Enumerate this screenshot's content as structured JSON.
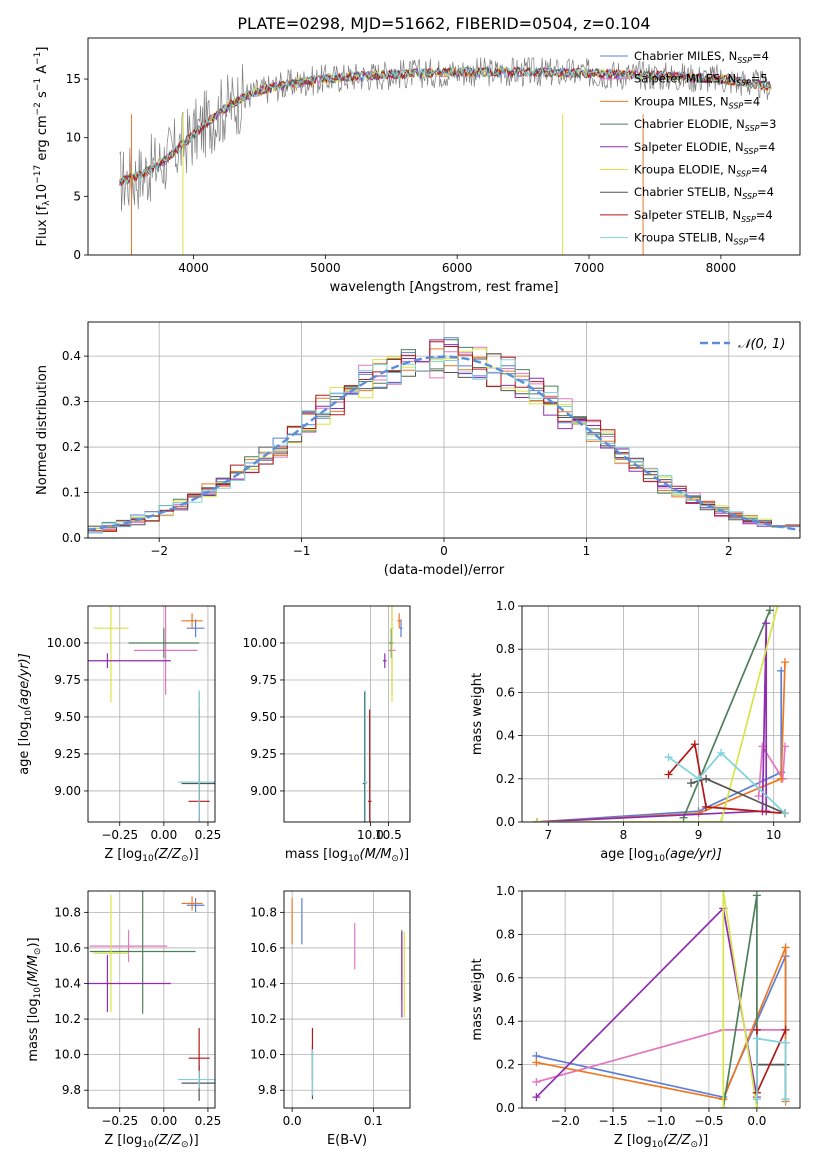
{
  "title": "PLATE=0298, MJD=51662, FIBERID=0504, z=0.104",
  "colors": {
    "Chabrier MILES": "#5b7fd6",
    "Salpeter MILES": "#e377c2",
    "Kroupa MILES": "#ee7722",
    "Chabrier ELODIE": "#4f7f5a",
    "Salpeter ELODIE": "#8e2db2",
    "Kroupa ELODIE": "#d6e548",
    "Chabrier STELIB": "#555555",
    "Salpeter STELIB": "#b21a1a",
    "Kroupa STELIB": "#7fd3dc",
    "normal": "#5b8ed8"
  },
  "chart_data": [
    {
      "id": "spectrum",
      "type": "line",
      "xlabel": "wavelength [Angstrom, rest frame]",
      "ylabel": "Flux [f",
      "ylabel_sub": "λ",
      "ylabel_rest": "10",
      "ylabel_exp": "−17",
      "ylabel_units": "erg cm",
      "ylabel_units_exp1": "−2",
      "ylabel_units_mid": "s",
      "ylabel_units_exp2": "−1",
      "ylabel_units_end": "A",
      "ylabel_units_exp3": "−1",
      "ylabel_close": "]",
      "xlim": [
        3200,
        8600
      ],
      "ylim": [
        0,
        18.5
      ],
      "xticks": [
        "4000",
        "5000",
        "6000",
        "7000",
        "8000"
      ],
      "yticks": [
        "0",
        "5",
        "10",
        "15"
      ],
      "shape_x": [
        3450,
        3600,
        3800,
        4000,
        4200,
        4400,
        4600,
        4800,
        5000,
        5200,
        5500,
        6000,
        6500,
        7000,
        7500,
        8000,
        8350
      ],
      "shape_y": [
        6.3,
        6.8,
        8.2,
        10.3,
        12.2,
        13.6,
        14.3,
        14.7,
        15.0,
        15.2,
        15.4,
        15.6,
        15.6,
        15.5,
        15.3,
        15.0,
        14.4
      ],
      "legend": [
        {
          "name": "Chabrier MILES",
          "pre": "Chabrier MILES, N",
          "sub": "SSP",
          "post": "=4"
        },
        {
          "name": "Salpeter MILES",
          "pre": "Salpeter MILES, N",
          "sub": "SSP",
          "post": "=5"
        },
        {
          "name": "Kroupa MILES",
          "pre": "Kroupa MILES, N",
          "sub": "SSP",
          "post": "=4"
        },
        {
          "name": "Chabrier ELODIE",
          "pre": "Chabrier ELODIE, N",
          "sub": "SSP",
          "post": "=3"
        },
        {
          "name": "Salpeter ELODIE",
          "pre": "Salpeter ELODIE, N",
          "sub": "SSP",
          "post": "=4"
        },
        {
          "name": "Kroupa ELODIE",
          "pre": "Kroupa ELODIE, N",
          "sub": "SSP",
          "post": "=4"
        },
        {
          "name": "Chabrier STELIB",
          "pre": "Chabrier STELIB, N",
          "sub": "SSP",
          "post": "=4"
        },
        {
          "name": "Salpeter STELIB",
          "pre": "Salpeter STELIB, N",
          "sub": "SSP",
          "post": "=4"
        },
        {
          "name": "Kroupa STELIB",
          "pre": "Kroupa STELIB, N",
          "sub": "SSP",
          "post": "=4"
        }
      ],
      "legend_position": "lower-right"
    },
    {
      "id": "residuals",
      "type": "line",
      "xlabel": "(data-model)/error",
      "ylabel": "Normed distribution",
      "xlim": [
        -2.5,
        2.5
      ],
      "ylim": [
        0,
        0.475
      ],
      "xticks": [
        "−2",
        "−1",
        "0",
        "1",
        "2"
      ],
      "yticks": [
        "0.0",
        "0.1",
        "0.2",
        "0.3",
        "0.4"
      ],
      "grid": true,
      "legend": [
        "𝒩(0, 1)"
      ],
      "legend_position": "top-right"
    },
    {
      "id": "age_vs_Z",
      "type": "scatter",
      "xlabel": "Z [log",
      "xlabel_sub": "10",
      "xlabel_rest": "(Z/Z",
      "xlabel_sub2": "⊙",
      "xlabel_close": ")]",
      "ylabel": "age  [log",
      "ylabel_sub": "10",
      "ylabel_rest": "(age/yr)]",
      "xlim": [
        -0.43,
        0.29
      ],
      "ylim": [
        8.79,
        10.25
      ],
      "xticks": [
        "−0.25",
        "0.00",
        "0.25"
      ],
      "yticks": [
        "9.00",
        "9.25",
        "9.50",
        "9.75",
        "10.00"
      ],
      "grid": true,
      "points": [
        {
          "model": "Chabrier MILES",
          "x": 0.18,
          "y": 10.1,
          "xerr": 0.05,
          "yerr": 0.06
        },
        {
          "model": "Kroupa MILES",
          "x": 0.16,
          "y": 10.15,
          "xerr": 0.06,
          "yerr": 0.05
        },
        {
          "model": "Salpeter MILES",
          "x": 0.01,
          "y": 9.95,
          "xerr": 0.18,
          "yerr": 0.3
        },
        {
          "model": "Chabrier ELODIE",
          "x": 0.0,
          "y": 10.0,
          "xerr": 0.2,
          "yerr": 0.1
        },
        {
          "model": "Kroupa ELODIE",
          "x": -0.3,
          "y": 10.1,
          "xerr": 0.1,
          "yerr": 0.5
        },
        {
          "model": "Salpeter ELODIE",
          "x": -0.32,
          "y": 9.88,
          "xerr": 0.36,
          "yerr": 0.05
        },
        {
          "model": "Chabrier STELIB",
          "x": 0.2,
          "y": 9.05,
          "xerr": 0.1,
          "yerr": 0.62
        },
        {
          "model": "Salpeter STELIB",
          "x": 0.2,
          "y": 8.93,
          "xerr": 0.06,
          "yerr": 0.62
        },
        {
          "model": "Kroupa STELIB",
          "x": 0.2,
          "y": 9.06,
          "xerr": 0.12,
          "yerr": 0.62
        }
      ]
    },
    {
      "id": "age_vs_mass",
      "type": "scatter",
      "xlabel": "mass [log",
      "xlabel_sub": "10",
      "xlabel_rest": "(M/M",
      "xlabel_sub2": "⊙",
      "xlabel_close": ")]",
      "xlim": [
        7.6,
        11.1
      ],
      "ylim": [
        8.79,
        10.25
      ],
      "xticks": [
        "10.0",
        "10.5"
      ],
      "yticks": [
        "9.00",
        "9.25",
        "9.50",
        "9.75",
        "10.00"
      ],
      "grid": true,
      "points": [
        {
          "model": "Chabrier MILES",
          "x": 10.85,
          "y": 10.1,
          "xerr": 0.04,
          "yerr": 0.06
        },
        {
          "model": "Kroupa MILES",
          "x": 10.8,
          "y": 10.15,
          "xerr": 0.05,
          "yerr": 0.05
        },
        {
          "model": "Salpeter MILES",
          "x": 10.6,
          "y": 9.95,
          "xerr": 0.1,
          "yerr": 0.3
        },
        {
          "model": "Chabrier ELODIE",
          "x": 10.58,
          "y": 10.0,
          "xerr": 0.06,
          "yerr": 0.1
        },
        {
          "model": "Kroupa ELODIE",
          "x": 10.6,
          "y": 10.1,
          "xerr": 0.05,
          "yerr": 0.5
        },
        {
          "model": "Salpeter ELODIE",
          "x": 10.4,
          "y": 9.88,
          "xerr": 0.05,
          "yerr": 0.05
        },
        {
          "model": "Chabrier STELIB",
          "x": 9.84,
          "y": 9.05,
          "xerr": 0.05,
          "yerr": 0.62
        },
        {
          "model": "Salpeter STELIB",
          "x": 9.98,
          "y": 8.93,
          "xerr": 0.05,
          "yerr": 0.62
        },
        {
          "model": "Kroupa STELIB",
          "x": 9.86,
          "y": 9.06,
          "xerr": 0.06,
          "yerr": 0.62
        }
      ]
    },
    {
      "id": "weight_vs_age",
      "type": "line",
      "xlabel": "age  [log",
      "xlabel_sub": "10",
      "xlabel_rest": "(age/yr)]",
      "ylabel": "mass weight",
      "xlim": [
        6.65,
        10.35
      ],
      "ylim": [
        0,
        1.0
      ],
      "xticks": [
        "7",
        "8",
        "9",
        "10"
      ],
      "yticks": [
        "0.0",
        "0.2",
        "0.4",
        "0.6",
        "0.8",
        "1.0"
      ],
      "grid": true,
      "series": [
        {
          "model": "Chabrier MILES",
          "x": [
            6.85,
            9.0,
            10.1,
            10.1
          ],
          "y": [
            0.0,
            0.05,
            0.23,
            0.7
          ]
        },
        {
          "model": "Salpeter MILES",
          "x": [
            9.8,
            9.85,
            10.12,
            10.15
          ],
          "y": [
            0.12,
            0.35,
            0.2,
            0.35
          ]
        },
        {
          "model": "Kroupa MILES",
          "x": [
            6.85,
            9.0,
            10.1,
            10.15
          ],
          "y": [
            0.0,
            0.04,
            0.2,
            0.74
          ]
        },
        {
          "model": "Chabrier ELODIE",
          "x": [
            8.8,
            9.95
          ],
          "y": [
            0.02,
            0.98
          ]
        },
        {
          "model": "Salpeter ELODIE",
          "x": [
            6.85,
            9.85,
            9.9,
            9.9
          ],
          "y": [
            0.0,
            0.05,
            0.92,
            0.05
          ]
        },
        {
          "model": "Kroupa ELODIE",
          "x": [
            6.85,
            9.3,
            10.05
          ],
          "y": [
            0.0,
            0.0,
            1.0
          ]
        },
        {
          "model": "Chabrier STELIB",
          "x": [
            8.9,
            9.1,
            10.15
          ],
          "y": [
            0.18,
            0.2,
            0.04
          ]
        },
        {
          "model": "Salpeter STELIB",
          "x": [
            8.6,
            8.95,
            9.1,
            10.15
          ],
          "y": [
            0.22,
            0.36,
            0.07,
            0.04
          ]
        },
        {
          "model": "Kroupa STELIB",
          "x": [
            8.6,
            9.0,
            9.3,
            10.15
          ],
          "y": [
            0.3,
            0.2,
            0.32,
            0.04
          ]
        }
      ]
    },
    {
      "id": "mass_vs_Z",
      "type": "scatter",
      "xlabel": "Z [log",
      "xlabel_sub": "10",
      "xlabel_rest": "(Z/Z",
      "xlabel_sub2": "⊙",
      "xlabel_close": ")]",
      "ylabel": "mass [log",
      "ylabel_sub": "10",
      "ylabel_rest": "(M/M",
      "ylabel_sub2": "⊙",
      "ylabel_close": ")]",
      "xlim": [
        -0.43,
        0.29
      ],
      "ylim": [
        9.7,
        10.92
      ],
      "xticks": [
        "−0.25",
        "0.00",
        "0.25"
      ],
      "yticks": [
        "9.8",
        "10.0",
        "10.2",
        "10.4",
        "10.6",
        "10.8"
      ],
      "grid": true,
      "points": [
        {
          "model": "Chabrier MILES",
          "x": 0.18,
          "y": 10.84,
          "xerr": 0.05,
          "yerr": 0.04
        },
        {
          "model": "Kroupa MILES",
          "x": 0.16,
          "y": 10.85,
          "xerr": 0.06,
          "yerr": 0.04
        },
        {
          "model": "Salpeter MILES",
          "x": -0.2,
          "y": 10.61,
          "xerr": 0.22,
          "yerr": 0.09
        },
        {
          "model": "Chabrier ELODIE",
          "x": -0.12,
          "y": 10.58,
          "xerr": 0.3,
          "yerr": 0.35
        },
        {
          "model": "Kroupa ELODIE",
          "x": -0.3,
          "y": 10.57,
          "xerr": 0.1,
          "yerr": 0.33
        },
        {
          "model": "Salpeter ELODIE",
          "x": -0.32,
          "y": 10.4,
          "xerr": 0.36,
          "yerr": 0.16
        },
        {
          "model": "Chabrier STELIB",
          "x": 0.2,
          "y": 9.84,
          "xerr": 0.1,
          "yerr": 0.1
        },
        {
          "model": "Salpeter STELIB",
          "x": 0.2,
          "y": 9.98,
          "xerr": 0.06,
          "yerr": 0.17
        },
        {
          "model": "Kroupa STELIB",
          "x": 0.2,
          "y": 9.86,
          "xerr": 0.12,
          "yerr": 0.05
        }
      ]
    },
    {
      "id": "mass_vs_ebv",
      "type": "scatter",
      "xlabel": "E(B-V)",
      "xlim": [
        -0.01,
        0.145
      ],
      "ylim": [
        9.7,
        10.92
      ],
      "xticks": [
        "0.0",
        "0.1"
      ],
      "yticks": [
        "9.8",
        "10.0",
        "10.2",
        "10.4",
        "10.6",
        "10.8"
      ],
      "grid": true,
      "points": [
        {
          "model": "Chabrier MILES",
          "x": 0.012,
          "y": 10.75,
          "yerr": 0.13
        },
        {
          "model": "Kroupa MILES",
          "x": 0.0,
          "y": 10.75,
          "yerr": 0.13
        },
        {
          "model": "Salpeter MILES",
          "x": 0.077,
          "y": 10.61,
          "yerr": 0.13
        },
        {
          "model": "Chabrier ELODIE",
          "x": 0.135,
          "y": 10.5,
          "yerr": 0.2
        },
        {
          "model": "Kroupa ELODIE",
          "x": 0.138,
          "y": 10.45,
          "yerr": 0.24
        },
        {
          "model": "Salpeter ELODIE",
          "x": 0.135,
          "y": 10.45,
          "yerr": 0.24
        },
        {
          "model": "Chabrier STELIB",
          "x": 0.025,
          "y": 9.9,
          "yerr": 0.15
        },
        {
          "model": "Salpeter STELIB",
          "x": 0.025,
          "y": 10.0,
          "yerr": 0.15
        },
        {
          "model": "Kroupa STELIB",
          "x": 0.025,
          "y": 9.9,
          "yerr": 0.13
        }
      ]
    },
    {
      "id": "weight_vs_Z",
      "type": "line",
      "xlabel": "Z [log",
      "xlabel_sub": "10",
      "xlabel_rest": "(Z/Z",
      "xlabel_sub2": "⊙",
      "xlabel_close": ")]",
      "ylabel": "mass weight",
      "xlim": [
        -2.45,
        0.45
      ],
      "ylim": [
        0,
        1.0
      ],
      "xticks": [
        "−2.0",
        "−1.5",
        "−1.0",
        "−0.5",
        "0.0"
      ],
      "yticks": [
        "0.0",
        "0.2",
        "0.4",
        "0.6",
        "0.8",
        "1.0"
      ],
      "grid": true,
      "series": [
        {
          "model": "Chabrier MILES",
          "x": [
            -2.3,
            -0.35,
            0.3,
            0.3
          ],
          "y": [
            0.24,
            0.05,
            0.7,
            0.3
          ]
        },
        {
          "model": "Salpeter MILES",
          "x": [
            -2.3,
            -0.35,
            0.3
          ],
          "y": [
            0.12,
            0.36,
            0.36
          ]
        },
        {
          "model": "Kroupa MILES",
          "x": [
            -2.3,
            -0.35,
            0.3,
            0.3
          ],
          "y": [
            0.21,
            0.04,
            0.74,
            0.03
          ]
        },
        {
          "model": "Chabrier ELODIE",
          "x": [
            -0.35,
            0.0,
            0.0
          ],
          "y": [
            0.0,
            0.98,
            0.0
          ]
        },
        {
          "model": "Salpeter ELODIE",
          "x": [
            -2.3,
            -0.35,
            0.0
          ],
          "y": [
            0.05,
            0.92,
            0.05
          ]
        },
        {
          "model": "Kroupa ELODIE",
          "x": [
            -0.35,
            -0.35,
            0.0
          ],
          "y": [
            0.0,
            1.0,
            0.0
          ]
        },
        {
          "model": "Chabrier STELIB",
          "x": [
            0.0,
            0.3,
            0.3
          ],
          "y": [
            0.2,
            0.2,
            0.04
          ]
        },
        {
          "model": "Salpeter STELIB",
          "x": [
            0.0,
            0.0,
            0.3
          ],
          "y": [
            0.36,
            0.07,
            0.36
          ]
        },
        {
          "model": "Kroupa STELIB",
          "x": [
            0.0,
            0.0,
            0.3,
            0.3
          ],
          "y": [
            0.04,
            0.32,
            0.3,
            0.04
          ]
        }
      ]
    }
  ]
}
